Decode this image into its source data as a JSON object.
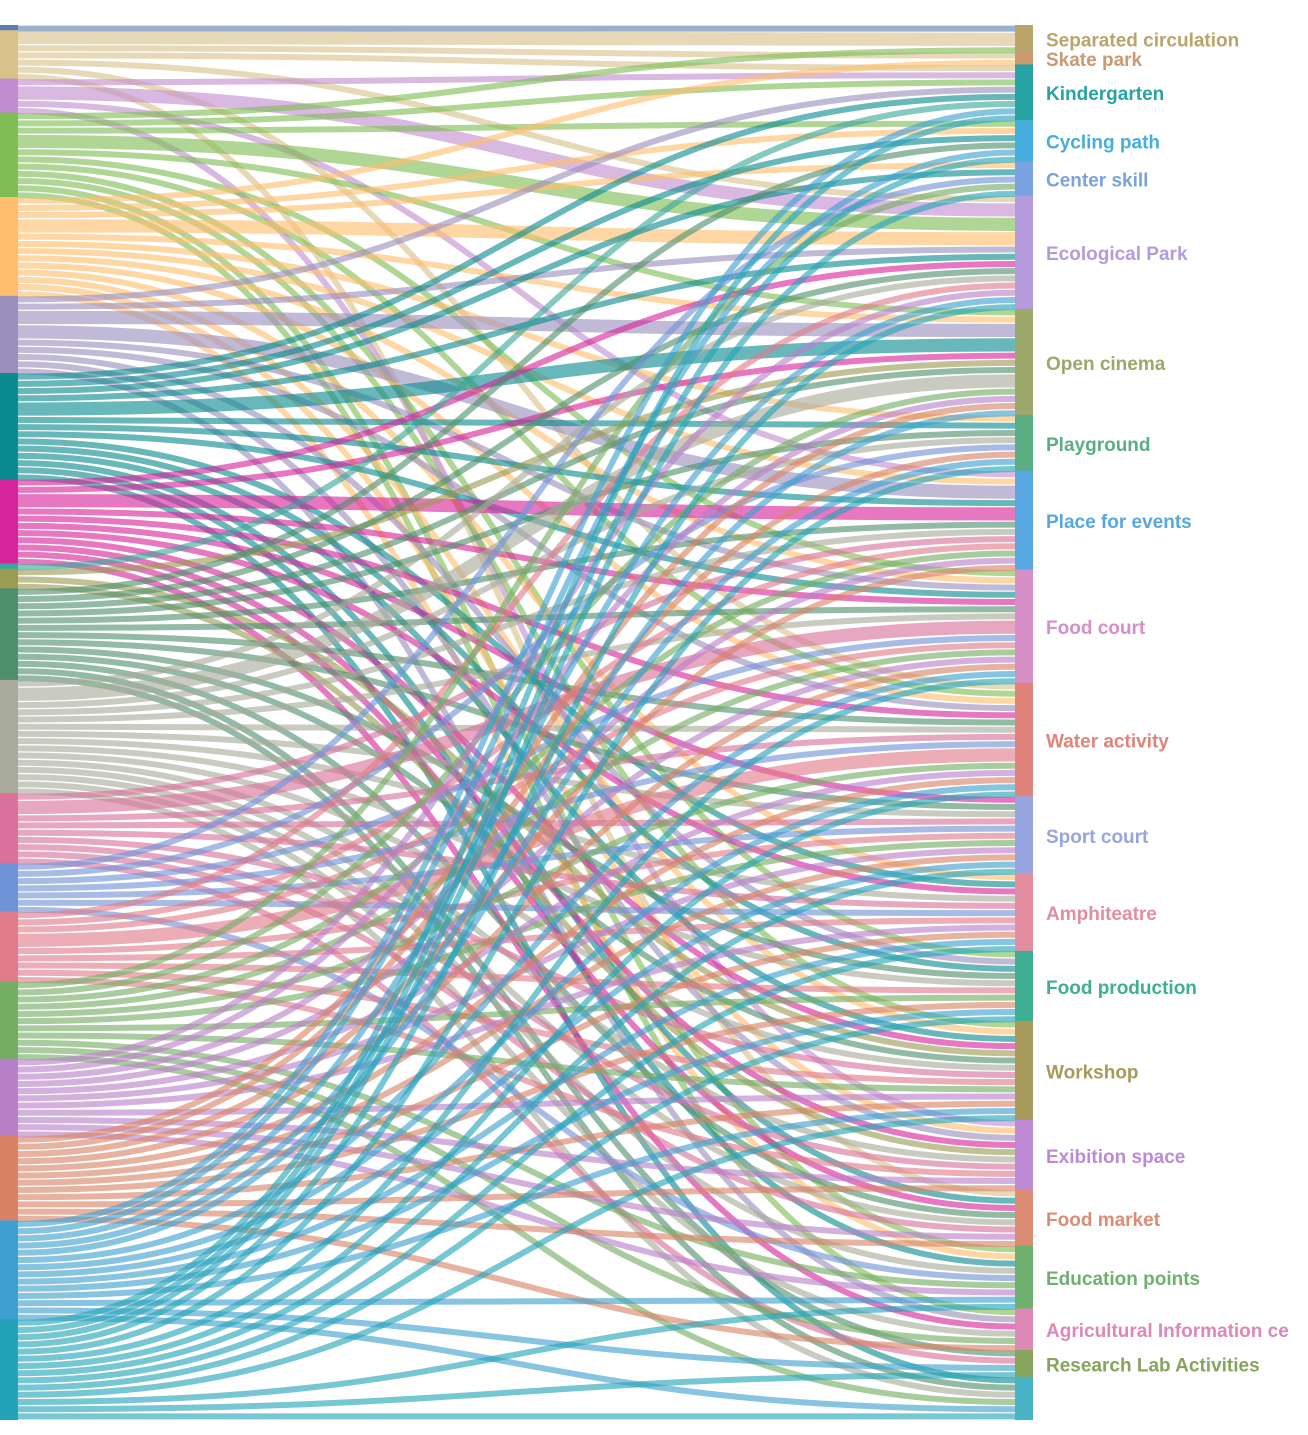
{
  "chart_data": {
    "type": "sankey",
    "left_nodes": [
      {
        "color": "#5b7fb4",
        "flows": [
          1,
          0,
          0,
          0,
          0,
          0,
          0,
          0,
          0,
          0,
          0,
          0,
          0,
          0,
          0,
          0,
          0,
          0,
          0,
          0,
          0
        ]
      },
      {
        "color": "#d9c28a",
        "flows": [
          2,
          1,
          1,
          0,
          0,
          1,
          0,
          0,
          0,
          0,
          1,
          0,
          0,
          0,
          0,
          0,
          1,
          0,
          0,
          0,
          0
        ]
      },
      {
        "color": "#c28cd0",
        "flows": [
          0,
          0,
          1,
          0,
          0,
          2,
          0,
          0,
          1,
          0,
          0,
          0,
          0,
          0,
          0,
          1,
          0,
          0,
          0,
          0,
          0
        ]
      },
      {
        "color": "#7fbd55",
        "flows": [
          1,
          0,
          1,
          1,
          0,
          2,
          1,
          0,
          0,
          1,
          1,
          0,
          0,
          1,
          1,
          0,
          0,
          1,
          1,
          0,
          0
        ]
      },
      {
        "color": "#ffbe6e",
        "flows": [
          0,
          1,
          0,
          1,
          1,
          2,
          1,
          1,
          1,
          1,
          1,
          0,
          1,
          0,
          1,
          1,
          0,
          1,
          0,
          0,
          0
        ]
      },
      {
        "color": "#9b8fbd",
        "flows": [
          0,
          0,
          1,
          0,
          0,
          1,
          2,
          0,
          2,
          1,
          1,
          0,
          0,
          1,
          0,
          1,
          0,
          0,
          1,
          0,
          0
        ]
      },
      {
        "color": "#0b8a8f",
        "flows": [
          0,
          0,
          1,
          1,
          1,
          1,
          2,
          1,
          1,
          1,
          0,
          0,
          1,
          1,
          1,
          0,
          1,
          1,
          0,
          0,
          1
        ]
      },
      {
        "color": "#d6249a",
        "flows": [
          0,
          0,
          0,
          0,
          0,
          1,
          1,
          0,
          2,
          1,
          1,
          1,
          1,
          0,
          1,
          1,
          1,
          0,
          1,
          0,
          0
        ]
      },
      {
        "color": "#3aa89b",
        "flows": [
          0,
          0,
          1,
          0,
          0,
          0,
          0,
          0,
          0,
          0,
          0,
          0,
          0,
          0,
          0,
          0,
          0,
          0,
          0,
          0,
          0
        ]
      },
      {
        "color": "#9b9b54",
        "flows": [
          0,
          0,
          0,
          0,
          0,
          0,
          1,
          0,
          0,
          0,
          0,
          0,
          0,
          0,
          1,
          1,
          0,
          0,
          0,
          0,
          0
        ]
      },
      {
        "color": "#4f8f6c",
        "flows": [
          0,
          0,
          0,
          1,
          0,
          1,
          1,
          1,
          1,
          1,
          1,
          1,
          0,
          1,
          1,
          0,
          1,
          0,
          0,
          1,
          1
        ]
      },
      {
        "color": "#a8ab9b",
        "flows": [
          0,
          0,
          0,
          0,
          0,
          1,
          2,
          1,
          1,
          1,
          1,
          1,
          1,
          1,
          1,
          1,
          1,
          1,
          1,
          0,
          1
        ]
      },
      {
        "color": "#d9719a",
        "flows": [
          0,
          0,
          0,
          0,
          0,
          0,
          0,
          0,
          1,
          2,
          1,
          1,
          1,
          0,
          1,
          1,
          1,
          0,
          0,
          1,
          0
        ]
      },
      {
        "color": "#6f93d9",
        "flows": [
          0,
          0,
          0,
          0,
          1,
          0,
          0,
          1,
          0,
          1,
          1,
          1,
          1,
          0,
          0,
          0,
          0,
          1,
          0,
          0,
          0
        ]
      },
      {
        "color": "#e07b89",
        "flows": [
          0,
          0,
          0,
          0,
          0,
          1,
          0,
          0,
          1,
          1,
          2,
          1,
          1,
          1,
          1,
          1,
          0,
          0,
          0,
          0,
          0
        ]
      },
      {
        "color": "#75ad63",
        "flows": [
          0,
          0,
          0,
          0,
          1,
          0,
          1,
          0,
          1,
          1,
          1,
          1,
          0,
          1,
          1,
          0,
          0,
          1,
          1,
          0,
          1
        ]
      },
      {
        "color": "#b97fc9",
        "flows": [
          0,
          0,
          0,
          0,
          0,
          1,
          1,
          0,
          1,
          1,
          1,
          1,
          1,
          0,
          1,
          1,
          1,
          1,
          0,
          0,
          0
        ]
      },
      {
        "color": "#d98266",
        "flows": [
          0,
          0,
          0,
          0,
          0,
          0,
          1,
          1,
          1,
          1,
          1,
          1,
          1,
          1,
          1,
          1,
          1,
          0,
          1,
          0,
          0
        ]
      },
      {
        "color": "#3e9fd1",
        "flows": [
          0,
          0,
          1,
          1,
          0,
          1,
          1,
          1,
          0,
          1,
          1,
          1,
          1,
          1,
          1,
          0,
          0,
          1,
          0,
          1,
          1
        ]
      },
      {
        "color": "#23a3b8",
        "flows": [
          0,
          0,
          1,
          1,
          1,
          1,
          0,
          1,
          0,
          1,
          1,
          1,
          1,
          1,
          1,
          0,
          0,
          1,
          0,
          1,
          1
        ]
      }
    ],
    "right_nodes": [
      {
        "name": "Separated circulation",
        "color": "#b9a46a"
      },
      {
        "name": "Skate park",
        "color": "#cc9970"
      },
      {
        "name": "Kindergarten",
        "color": "#27a3a3"
      },
      {
        "name": "Cycling path",
        "color": "#46aedc"
      },
      {
        "name": "Center skill",
        "color": "#7aa2e0"
      },
      {
        "name": "Ecological Park",
        "color": "#b49bdc"
      },
      {
        "name": "Open cinema",
        "color": "#9ba86a"
      },
      {
        "name": "Playground",
        "color": "#5bad84"
      },
      {
        "name": "Place for events",
        "color": "#58a7e0"
      },
      {
        "name": "Food court",
        "color": "#d68fc7"
      },
      {
        "name": "Water activity",
        "color": "#e0837a"
      },
      {
        "name": "Sport court",
        "color": "#96a4e0"
      },
      {
        "name": "Amphiteatre",
        "color": "#e38da0"
      },
      {
        "name": "Food production",
        "color": "#3fae92"
      },
      {
        "name": "Workshop",
        "color": "#a89a5a"
      },
      {
        "name": "Exibition space",
        "color": "#bd8ad6"
      },
      {
        "name": "Food market",
        "color": "#dc8c72"
      },
      {
        "name": "Education points",
        "color": "#6fb070"
      },
      {
        "name": "Agricultural Information ce",
        "color": "#de88b8"
      },
      {
        "name": "Research Lab Activities",
        "color": "#86a45c"
      },
      {
        "name": "",
        "color": "#48b3c4"
      }
    ]
  }
}
